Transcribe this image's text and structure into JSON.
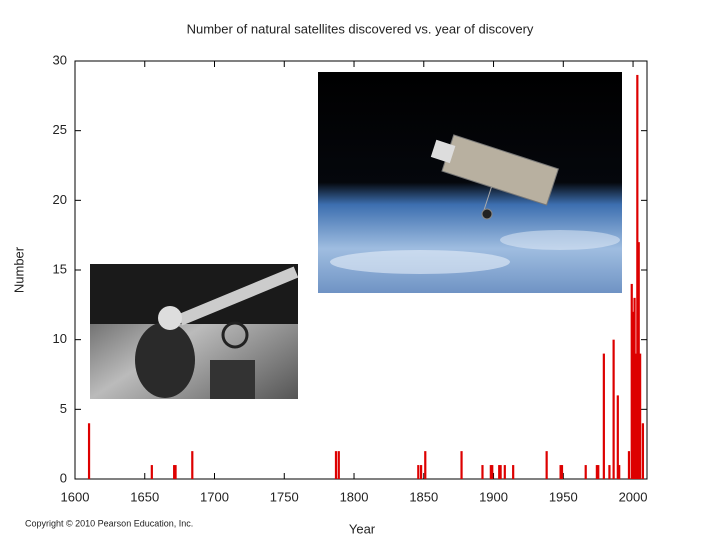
{
  "chart_data": {
    "type": "bar",
    "title": "Number of natural satellites discovered vs. year of discovery",
    "x_label": "Year",
    "y_label": "Number",
    "x": [
      1610,
      1655,
      1671,
      1672,
      1684,
      1787,
      1789,
      1846,
      1848,
      1851,
      1877,
      1892,
      1898,
      1899,
      1904,
      1905,
      1908,
      1914,
      1938,
      1948,
      1949,
      1966,
      1974,
      1975,
      1979,
      1983,
      1986,
      1989,
      1990,
      1997,
      1999,
      2000,
      2001,
      2002,
      2003,
      2004,
      2005,
      2007
    ],
    "values": [
      4,
      1,
      1,
      1,
      2,
      2,
      2,
      1,
      1,
      2,
      2,
      1,
      1,
      1,
      1,
      1,
      1,
      1,
      2,
      1,
      1,
      1,
      1,
      1,
      9,
      1,
      10,
      6,
      1,
      2,
      14,
      12,
      13,
      9,
      29,
      17,
      9,
      4
    ],
    "color": "#dd0000",
    "xlim": [
      1600,
      2010
    ],
    "xticks": [
      1600,
      1650,
      1700,
      1750,
      1800,
      1850,
      1900,
      1950,
      2000
    ],
    "ylim": [
      0,
      30
    ],
    "yticks": [
      0,
      5,
      10,
      15,
      20,
      25,
      30
    ],
    "grid": false
  },
  "copyright": "Copyright © 2010 Pearson Education, Inc."
}
